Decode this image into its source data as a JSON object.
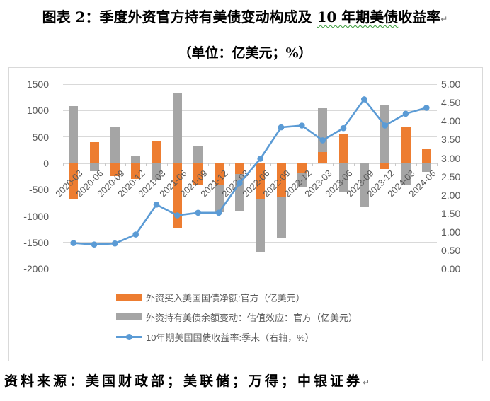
{
  "title": {
    "text_before": "图表 2：季度外资官方持有美债变动构成及 ",
    "text_wavy": "10 年期美债",
    "text_after": "收益率",
    "paragraph_mark": "↵"
  },
  "subtitle": "（单位：亿美元；%）",
  "source": "资料来源：美国财政部；美联储；万得；中银证券",
  "source_paragraph_mark": "↵",
  "colors": {
    "orange": "#ED7D31",
    "gray": "#A5A5A5",
    "blue": "#5B9BD5",
    "gridline": "#D9D9D9",
    "axis_text": "#595959",
    "wavy_underline": "#3A9A3A"
  },
  "legend": {
    "items": [
      {
        "type": "bar",
        "color": "#ED7D31",
        "label": "外资买入美国国债净额:官方（亿美元）"
      },
      {
        "type": "bar",
        "color": "#A5A5A5",
        "label": "外资持有美债余额变动：估值效应：官方（亿美元）"
      },
      {
        "type": "line",
        "color": "#5B9BD5",
        "label": "10年期美国国债收益率:季末（右轴，%）"
      }
    ]
  },
  "chart_data": {
    "type": "bar",
    "subtype": "stacked bars with secondary-axis line",
    "title": "季度外资官方持有美债变动构成及10年期美债收益率",
    "units": "亿美元; %",
    "categories": [
      "2020-03",
      "2020-06",
      "2020-09",
      "2020-12",
      "2021-03",
      "2021-06",
      "2021-09",
      "2021-12",
      "2022-03",
      "2022-06",
      "2022-09",
      "2022-12",
      "2023-03",
      "2023-06",
      "2023-09",
      "2023-12",
      "2024-03",
      "2024-06"
    ],
    "series": [
      {
        "name": "外资买入美国国债净额:官方（亿美元）",
        "type": "bar",
        "stacked": true,
        "axis": "left",
        "color": "#ED7D31",
        "values": [
          -670,
          400,
          -245,
          -300,
          410,
          -1220,
          -420,
          -410,
          -200,
          -670,
          -645,
          -185,
          210,
          565,
          0,
          -110,
          690,
          265
        ]
      },
      {
        "name": "外资持有美债余额变动：估值效应：官方（亿美元）",
        "type": "bar",
        "stacked": true,
        "axis": "left",
        "color": "#A5A5A5",
        "values": [
          1090,
          -150,
          700,
          140,
          -310,
          1325,
          330,
          -520,
          -710,
          -1020,
          -775,
          -255,
          830,
          -555,
          -830,
          1100,
          -400,
          -155
        ]
      },
      {
        "name": "10年期美国国债收益率:季末（右轴，%）",
        "type": "line",
        "axis": "right",
        "color": "#5B9BD5",
        "values": [
          0.7,
          0.66,
          0.69,
          0.93,
          1.74,
          1.45,
          1.52,
          1.52,
          2.32,
          2.98,
          3.83,
          3.88,
          3.48,
          3.81,
          4.59,
          3.88,
          4.2,
          4.36
        ]
      }
    ],
    "left_axis": {
      "min": -2000,
      "max": 1500,
      "step": 500,
      "values": [
        1500,
        1000,
        500,
        0,
        -500,
        -1000,
        -1500,
        -2000
      ],
      "ticks": [
        "1500",
        "1000",
        "500",
        "0",
        "-500",
        "-1000",
        "-1500",
        "-2000"
      ]
    },
    "right_axis": {
      "min": 0,
      "max": 5,
      "step": 0.5,
      "values": [
        5.0,
        4.5,
        4.0,
        3.5,
        3.0,
        2.5,
        2.0,
        1.5,
        1.0,
        0.5,
        0.0
      ],
      "ticks": [
        "5.00",
        "4.50",
        "4.00",
        "3.50",
        "3.00",
        "2.50",
        "2.00",
        "1.50",
        "1.00",
        "0.50",
        "0.00"
      ]
    },
    "grid": true,
    "legend_position": "bottom-left",
    "x_label_rotation": -45
  }
}
